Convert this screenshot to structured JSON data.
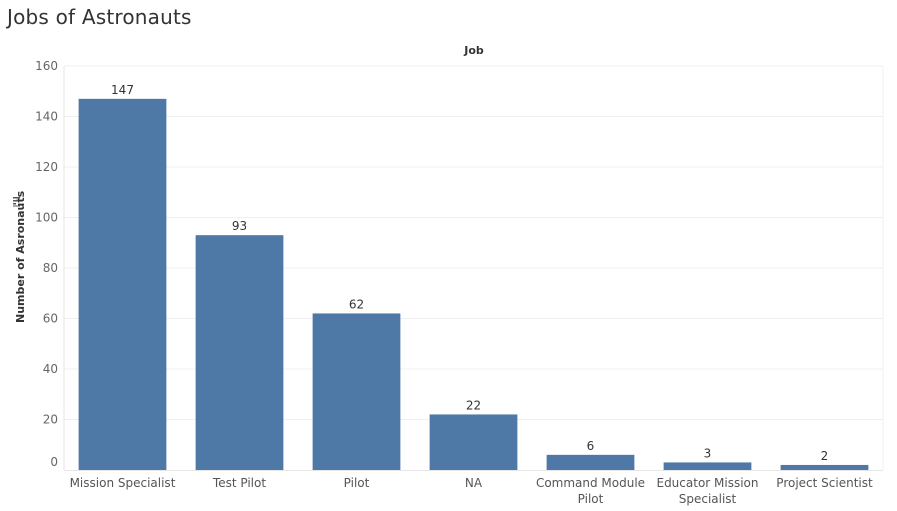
{
  "chart_data": {
    "type": "bar",
    "title": "Jobs of Astronauts",
    "column_header": "Job",
    "ylabel": "Number of Asronauts",
    "xlabel": "",
    "ylim": [
      0,
      160
    ],
    "yticks": [
      0,
      20,
      40,
      60,
      80,
      100,
      120,
      140,
      160
    ],
    "categories": [
      "Mission Specialist",
      "Test Pilot",
      "Pilot",
      "NA",
      "Command Module Pilot",
      "Educator Mission Specialist",
      "Project Scientist"
    ],
    "category_label_lines": [
      [
        "Mission Specialist"
      ],
      [
        "Test Pilot"
      ],
      [
        "Pilot"
      ],
      [
        "NA"
      ],
      [
        "Command Module",
        "Pilot"
      ],
      [
        "Educator Mission",
        "Specialist"
      ],
      [
        "Project Scientist"
      ]
    ],
    "values": [
      147,
      93,
      62,
      22,
      6,
      3,
      2
    ],
    "data_labels": [
      "147",
      "93",
      "62",
      "22",
      "6",
      "3",
      "2"
    ],
    "grid": "horizontal",
    "bar_color": "#4e79a7",
    "sort_icon": "sort-descending-icon"
  }
}
